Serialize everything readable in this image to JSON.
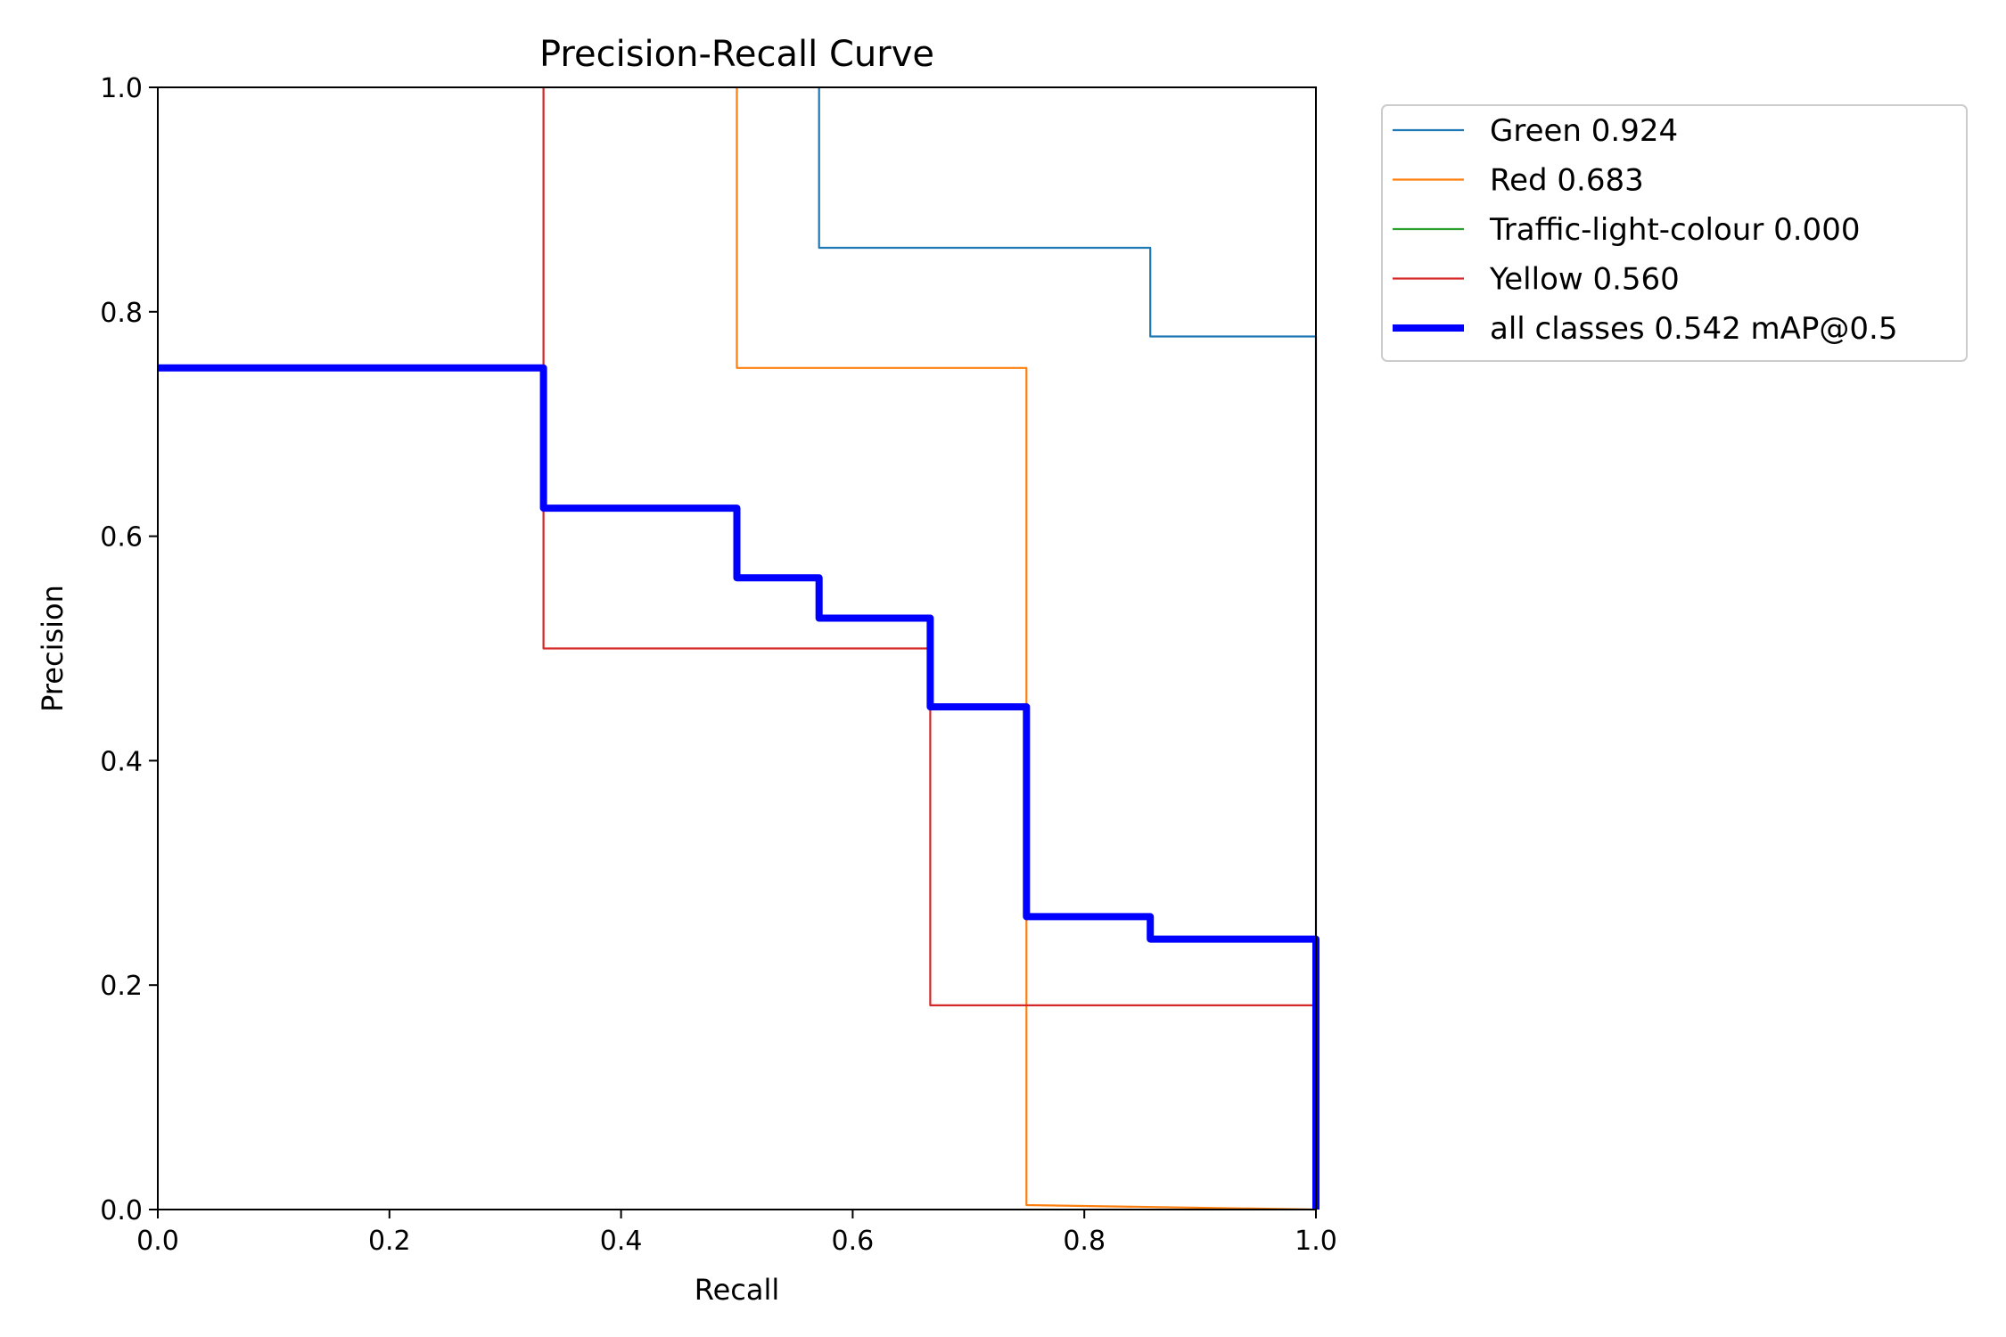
{
  "chart_data": {
    "type": "line",
    "title": "Precision-Recall Curve",
    "xlabel": "Recall",
    "ylabel": "Precision",
    "xlim": [
      0,
      1
    ],
    "ylim": [
      0,
      1
    ],
    "x_ticks": [
      "0.0",
      "0.2",
      "0.4",
      "0.6",
      "0.8",
      "1.0"
    ],
    "y_ticks": [
      "0.0",
      "0.2",
      "0.4",
      "0.6",
      "0.8",
      "1.0"
    ],
    "grid": false,
    "legend_position": "outside-upper-right",
    "series": [
      {
        "name": "Green 0.924",
        "color": "#1f77b4",
        "linewidth": "thin",
        "points": [
          [
            0.571,
            1.0
          ],
          [
            0.571,
            0.857
          ],
          [
            0.857,
            0.857
          ],
          [
            0.857,
            0.778
          ],
          [
            1.0,
            0.778
          ],
          [
            1.0,
            0.0
          ]
        ]
      },
      {
        "name": "Red 0.683",
        "color": "#ff7f0e",
        "linewidth": "thin",
        "points": [
          [
            0.5,
            1.0
          ],
          [
            0.5,
            0.75
          ],
          [
            0.75,
            0.75
          ],
          [
            0.75,
            0.004
          ],
          [
            1.0,
            0.0
          ]
        ]
      },
      {
        "name": "Traffic-light-colour 0.000",
        "color": "#2ca02c",
        "linewidth": "thin",
        "points": []
      },
      {
        "name": "Yellow 0.560",
        "color": "#d62728",
        "linewidth": "thin",
        "points": [
          [
            0.333,
            1.0
          ],
          [
            0.333,
            0.5
          ],
          [
            0.667,
            0.5
          ],
          [
            0.667,
            0.182
          ],
          [
            1.0,
            0.182
          ],
          [
            1.0,
            0.0
          ]
        ]
      },
      {
        "name": "all classes 0.542 mAP@0.5",
        "color": "#0000ff",
        "linewidth": "thick",
        "points": [
          [
            0.0,
            0.75
          ],
          [
            0.333,
            0.75
          ],
          [
            0.333,
            0.625
          ],
          [
            0.5,
            0.625
          ],
          [
            0.5,
            0.563
          ],
          [
            0.571,
            0.563
          ],
          [
            0.571,
            0.527
          ],
          [
            0.667,
            0.527
          ],
          [
            0.667,
            0.448
          ],
          [
            0.75,
            0.448
          ],
          [
            0.75,
            0.261
          ],
          [
            0.857,
            0.261
          ],
          [
            0.857,
            0.241
          ],
          [
            1.0,
            0.241
          ],
          [
            1.0,
            0.0
          ]
        ]
      }
    ]
  }
}
